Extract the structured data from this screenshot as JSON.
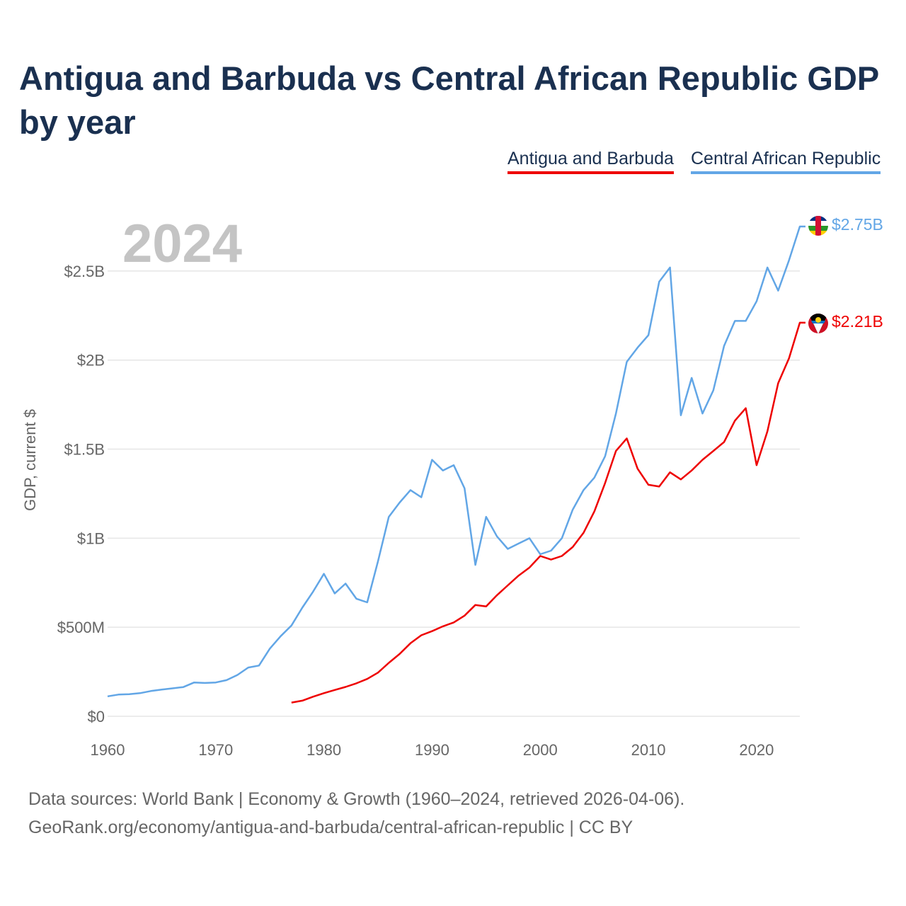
{
  "title": "Antigua and Barbuda vs Central African Republic GDP by year",
  "legend": {
    "series_a": "Antigua and Barbuda",
    "series_b": "Central African Republic"
  },
  "year_label": "2024",
  "end_labels": {
    "series_a": "$2.21B",
    "series_b": "$2.75B"
  },
  "footer": {
    "line1": "Data sources: World Bank | Economy & Growth (1960–2024, retrieved 2026-04-06).",
    "line2": "GeoRank.org/economy/antigua-and-barbuda/central-african-republic | CC BY"
  },
  "colors": {
    "series_a": "#ee0000",
    "series_b": "#62a6e6",
    "title": "#1a3050",
    "grid": "#e6e6e6"
  },
  "chart_data": {
    "type": "line",
    "title": "Antigua and Barbuda vs Central African Republic GDP by year",
    "xlabel": "",
    "ylabel": "GDP, current $",
    "xlim": [
      1960,
      2024
    ],
    "ylim": [
      0,
      2.75
    ],
    "y_unit": "billions of current US$",
    "x_ticks": [
      1960,
      1970,
      1980,
      1990,
      2000,
      2010,
      2020
    ],
    "x_tick_labels": [
      "1960",
      "1970",
      "1980",
      "1990",
      "2000",
      "2010",
      "2020"
    ],
    "y_ticks": [
      0,
      0.5,
      1,
      1.5,
      2,
      2.5
    ],
    "y_tick_labels": [
      "$0",
      "$500M",
      "$1B",
      "$1.5B",
      "$2B",
      "$2.5B"
    ],
    "grid": true,
    "legend_position": "top-right",
    "series": [
      {
        "name": "Antigua and Barbuda",
        "color": "#ee0000",
        "x": [
          1977,
          1978,
          1979,
          1980,
          1981,
          1982,
          1983,
          1984,
          1985,
          1986,
          1987,
          1988,
          1989,
          1990,
          1991,
          1992,
          1993,
          1994,
          1995,
          1996,
          1997,
          1998,
          1999,
          2000,
          2001,
          2002,
          2003,
          2004,
          2005,
          2006,
          2007,
          2008,
          2009,
          2010,
          2011,
          2012,
          2013,
          2014,
          2015,
          2016,
          2017,
          2018,
          2019,
          2020,
          2021,
          2022,
          2023,
          2024
        ],
        "values": [
          0.077,
          0.088,
          0.11,
          0.13,
          0.148,
          0.165,
          0.185,
          0.21,
          0.245,
          0.3,
          0.35,
          0.41,
          0.455,
          0.478,
          0.505,
          0.527,
          0.565,
          0.625,
          0.617,
          0.68,
          0.735,
          0.79,
          0.835,
          0.9,
          0.88,
          0.9,
          0.95,
          1.03,
          1.15,
          1.31,
          1.49,
          1.56,
          1.39,
          1.3,
          1.29,
          1.37,
          1.33,
          1.38,
          1.44,
          1.49,
          1.54,
          1.66,
          1.73,
          1.41,
          1.6,
          1.87,
          2.01,
          2.21
        ]
      },
      {
        "name": "Central African Republic",
        "color": "#62a6e6",
        "x": [
          1960,
          1961,
          1962,
          1963,
          1964,
          1965,
          1966,
          1967,
          1968,
          1969,
          1970,
          1971,
          1972,
          1973,
          1974,
          1975,
          1976,
          1977,
          1978,
          1979,
          1980,
          1981,
          1982,
          1983,
          1984,
          1985,
          1986,
          1987,
          1988,
          1989,
          1990,
          1991,
          1992,
          1993,
          1994,
          1995,
          1996,
          1997,
          1998,
          1999,
          2000,
          2001,
          2002,
          2003,
          2004,
          2005,
          2006,
          2007,
          2008,
          2009,
          2010,
          2011,
          2012,
          2013,
          2014,
          2015,
          2016,
          2017,
          2018,
          2019,
          2020,
          2021,
          2022,
          2023,
          2024
        ],
        "values": [
          0.112,
          0.122,
          0.124,
          0.13,
          0.142,
          0.15,
          0.157,
          0.164,
          0.19,
          0.187,
          0.19,
          0.203,
          0.232,
          0.274,
          0.285,
          0.38,
          0.45,
          0.51,
          0.61,
          0.7,
          0.8,
          0.69,
          0.745,
          0.66,
          0.64,
          0.87,
          1.12,
          1.2,
          1.27,
          1.23,
          1.44,
          1.38,
          1.41,
          1.28,
          0.85,
          1.12,
          1.01,
          0.94,
          0.97,
          1.0,
          0.91,
          0.93,
          1.0,
          1.16,
          1.27,
          1.34,
          1.46,
          1.7,
          1.99,
          2.07,
          2.14,
          2.44,
          2.52,
          1.69,
          1.9,
          1.7,
          1.83,
          2.08,
          2.22,
          2.22,
          2.33,
          2.52,
          2.39,
          2.56,
          2.75
        ]
      }
    ]
  }
}
